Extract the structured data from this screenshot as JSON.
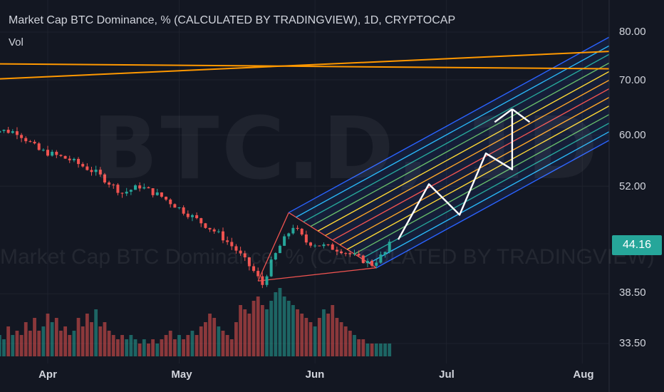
{
  "header": {
    "title": "Market Cap BTC Dominance, % (CALCULATED BY TRADINGVIEW), 1D, CRYPTOCAP",
    "volume_label": "Vol"
  },
  "watermark": {
    "symbol": "BTC.D, 1D",
    "name": "Market Cap BTC Dominance, % (CALCULATED BY TRADINGVIEW)"
  },
  "price_axis": {
    "ticks": [
      "80.00",
      "70.00",
      "60.00",
      "52.00",
      "44.16",
      "38.50",
      "33.50"
    ],
    "last_price": "44.16"
  },
  "time_axis": {
    "ticks": [
      "Apr",
      "May",
      "Jun",
      "Jul",
      "Aug"
    ]
  },
  "colors": {
    "background": "#131722",
    "up": "#26a69a",
    "down": "#ef5350",
    "trendline": "#ff9800",
    "projection": "#ffffff"
  },
  "chart_data": {
    "type": "candlestick",
    "title": "Market Cap BTC Dominance, % (CALCULATED BY TRADINGVIEW), 1D, CRYPTOCAP",
    "scale": "log",
    "ylim": [
      31.5,
      88
    ],
    "x_range": [
      "2021-03-18",
      "2021-08-07"
    ],
    "y_ticks": [
      80,
      70,
      60,
      52,
      44.16,
      38.5,
      33.5
    ],
    "x_ticks": [
      "Apr",
      "May",
      "Jun",
      "Jul",
      "Aug"
    ],
    "close_path": [
      [
        "2021-03-18",
        61.0
      ],
      [
        "2021-03-25",
        60.5
      ],
      [
        "2021-03-30",
        57.5
      ],
      [
        "2021-04-06",
        56.0
      ],
      [
        "2021-04-12",
        54.0
      ],
      [
        "2021-04-18",
        51.0
      ],
      [
        "2021-04-22",
        52.0
      ],
      [
        "2021-04-27",
        50.5
      ],
      [
        "2021-05-02",
        48.5
      ],
      [
        "2021-05-06",
        47.0
      ],
      [
        "2021-05-10",
        45.5
      ],
      [
        "2021-05-14",
        43.5
      ],
      [
        "2021-05-18",
        41.0
      ],
      [
        "2021-05-20",
        39.5
      ],
      [
        "2021-05-22",
        42.0
      ],
      [
        "2021-05-24",
        44.0
      ],
      [
        "2021-05-27",
        46.5
      ],
      [
        "2021-05-30",
        44.5
      ],
      [
        "2021-06-03",
        44.0
      ],
      [
        "2021-06-07",
        43.5
      ],
      [
        "2021-06-11",
        42.5
      ],
      [
        "2021-06-14",
        41.8
      ],
      [
        "2021-06-17",
        43.2
      ],
      [
        "2021-06-18",
        44.16
      ]
    ],
    "volume": {
      "label": "Vol",
      "levels": [
        4,
        5,
        4,
        5,
        4,
        7,
        5,
        6,
        5,
        8,
        6,
        9,
        6,
        7,
        10,
        8,
        9,
        6,
        7,
        5,
        6,
        9,
        7,
        10,
        8,
        11,
        7,
        8,
        6,
        5,
        4,
        5,
        4,
        5,
        4,
        3,
        4,
        3,
        4,
        3,
        4,
        5,
        6,
        4,
        5,
        4,
        5,
        6,
        5,
        7,
        8,
        10,
        9,
        7,
        6,
        5,
        4,
        8,
        12,
        11,
        10,
        13,
        14,
        12,
        11,
        13,
        15,
        16,
        14,
        13,
        12,
        11,
        10,
        9,
        8,
        7,
        9,
        11,
        10,
        12,
        9,
        8,
        7,
        6,
        5,
        4,
        4,
        3,
        3,
        3,
        3,
        3,
        3,
        3,
        3,
        3,
        3,
        3,
        4,
        4,
        4,
        4,
        4
      ]
    },
    "series": [
      {
        "type": "line",
        "color": "#ff9800",
        "points": [
          [
            "2021-03-18",
            73.2
          ],
          [
            "2021-08-07",
            72.2
          ]
        ]
      },
      {
        "type": "line",
        "color": "#ff9800",
        "points": [
          [
            "2021-03-18",
            70.2
          ],
          [
            "2021-08-07",
            75.8
          ]
        ]
      },
      {
        "type": "projection",
        "color": "#ffffff",
        "points": [
          [
            "2021-06-20",
            44.8
          ],
          [
            "2021-06-27",
            52.3
          ],
          [
            "2021-07-04",
            48.0
          ],
          [
            "2021-07-10",
            57.0
          ],
          [
            "2021-07-16",
            54.5
          ],
          [
            "2021-07-16",
            64.5
          ],
          [
            "2021-07-20",
            62.2
          ]
        ]
      }
    ],
    "pitchfork": {
      "pivots": [
        [
          "2021-05-19",
          39.9
        ],
        [
          "2021-05-26",
          48.3
        ],
        [
          "2021-06-15",
          41.4
        ]
      ],
      "line_colors": [
        "#2962ff",
        "#29b6f6",
        "#26a69a",
        "#66bb6a",
        "#fdd835",
        "#ffa726",
        "#ef5350"
      ]
    }
  }
}
